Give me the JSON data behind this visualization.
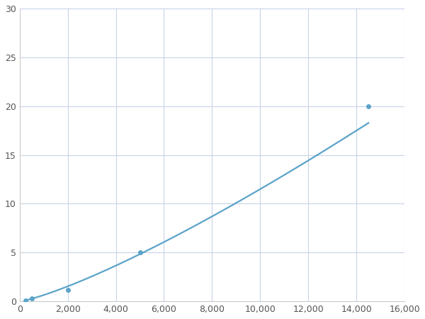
{
  "x_points": [
    250,
    500,
    2000,
    5000,
    14500
  ],
  "y_points": [
    0.12,
    0.3,
    1.2,
    5.0,
    20.0
  ],
  "line_color": "#5ba3c9",
  "marker_color": "#5ba3c9",
  "marker_size": 5,
  "line_width": 1.6,
  "xlim": [
    0,
    16000
  ],
  "ylim": [
    0,
    30
  ],
  "xticks": [
    0,
    2000,
    4000,
    6000,
    8000,
    10000,
    12000,
    14000,
    16000
  ],
  "yticks": [
    0,
    5,
    10,
    15,
    20,
    25,
    30
  ],
  "grid_color": "#c8d4e8",
  "background_color": "#ffffff",
  "figsize": [
    6.0,
    4.5
  ],
  "dpi": 100
}
